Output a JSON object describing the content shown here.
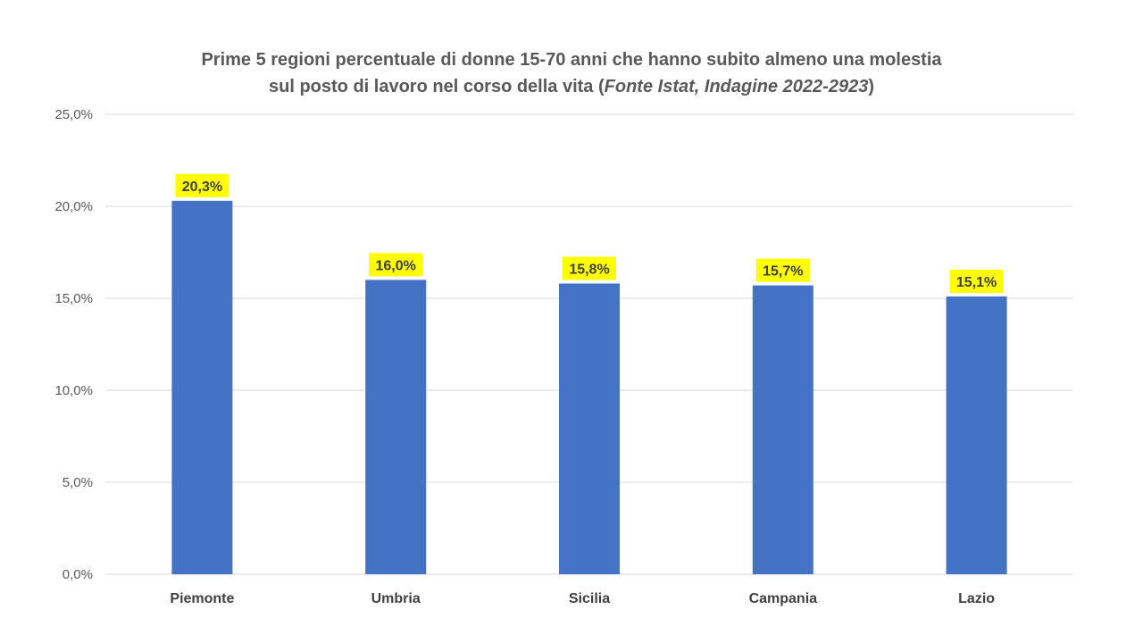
{
  "chart_data": {
    "type": "bar",
    "title_line1": "Prime 5 regioni percentuale di donne 15-70 anni che hanno subito almeno una molestia",
    "title_line2": "sul posto di lavoro nel corso della vita  (",
    "title_source": "Fonte Istat, Indagine 2022-2923",
    "title_close": ")",
    "categories": [
      "Piemonte",
      "Umbria",
      "Sicilia",
      "Campania",
      "Lazio"
    ],
    "values": [
      20.3,
      16.0,
      15.8,
      15.7,
      15.1
    ],
    "data_labels": [
      "20,3%",
      "16,0%",
      "15,8%",
      "15,7%",
      "15,1%"
    ],
    "ylim": [
      0,
      25
    ],
    "yticks": [
      0,
      5,
      10,
      15,
      20,
      25
    ],
    "ytick_labels": [
      "0,0%",
      "5,0%",
      "10,0%",
      "15,0%",
      "20,0%",
      "25,0%"
    ],
    "xlabel": "",
    "ylabel": "",
    "grid": true,
    "legend": "none",
    "colors": {
      "bar": "#4472C4",
      "label_highlight": "#FFFF00",
      "gridline": "#D9D9D9",
      "text": "#595959"
    }
  }
}
